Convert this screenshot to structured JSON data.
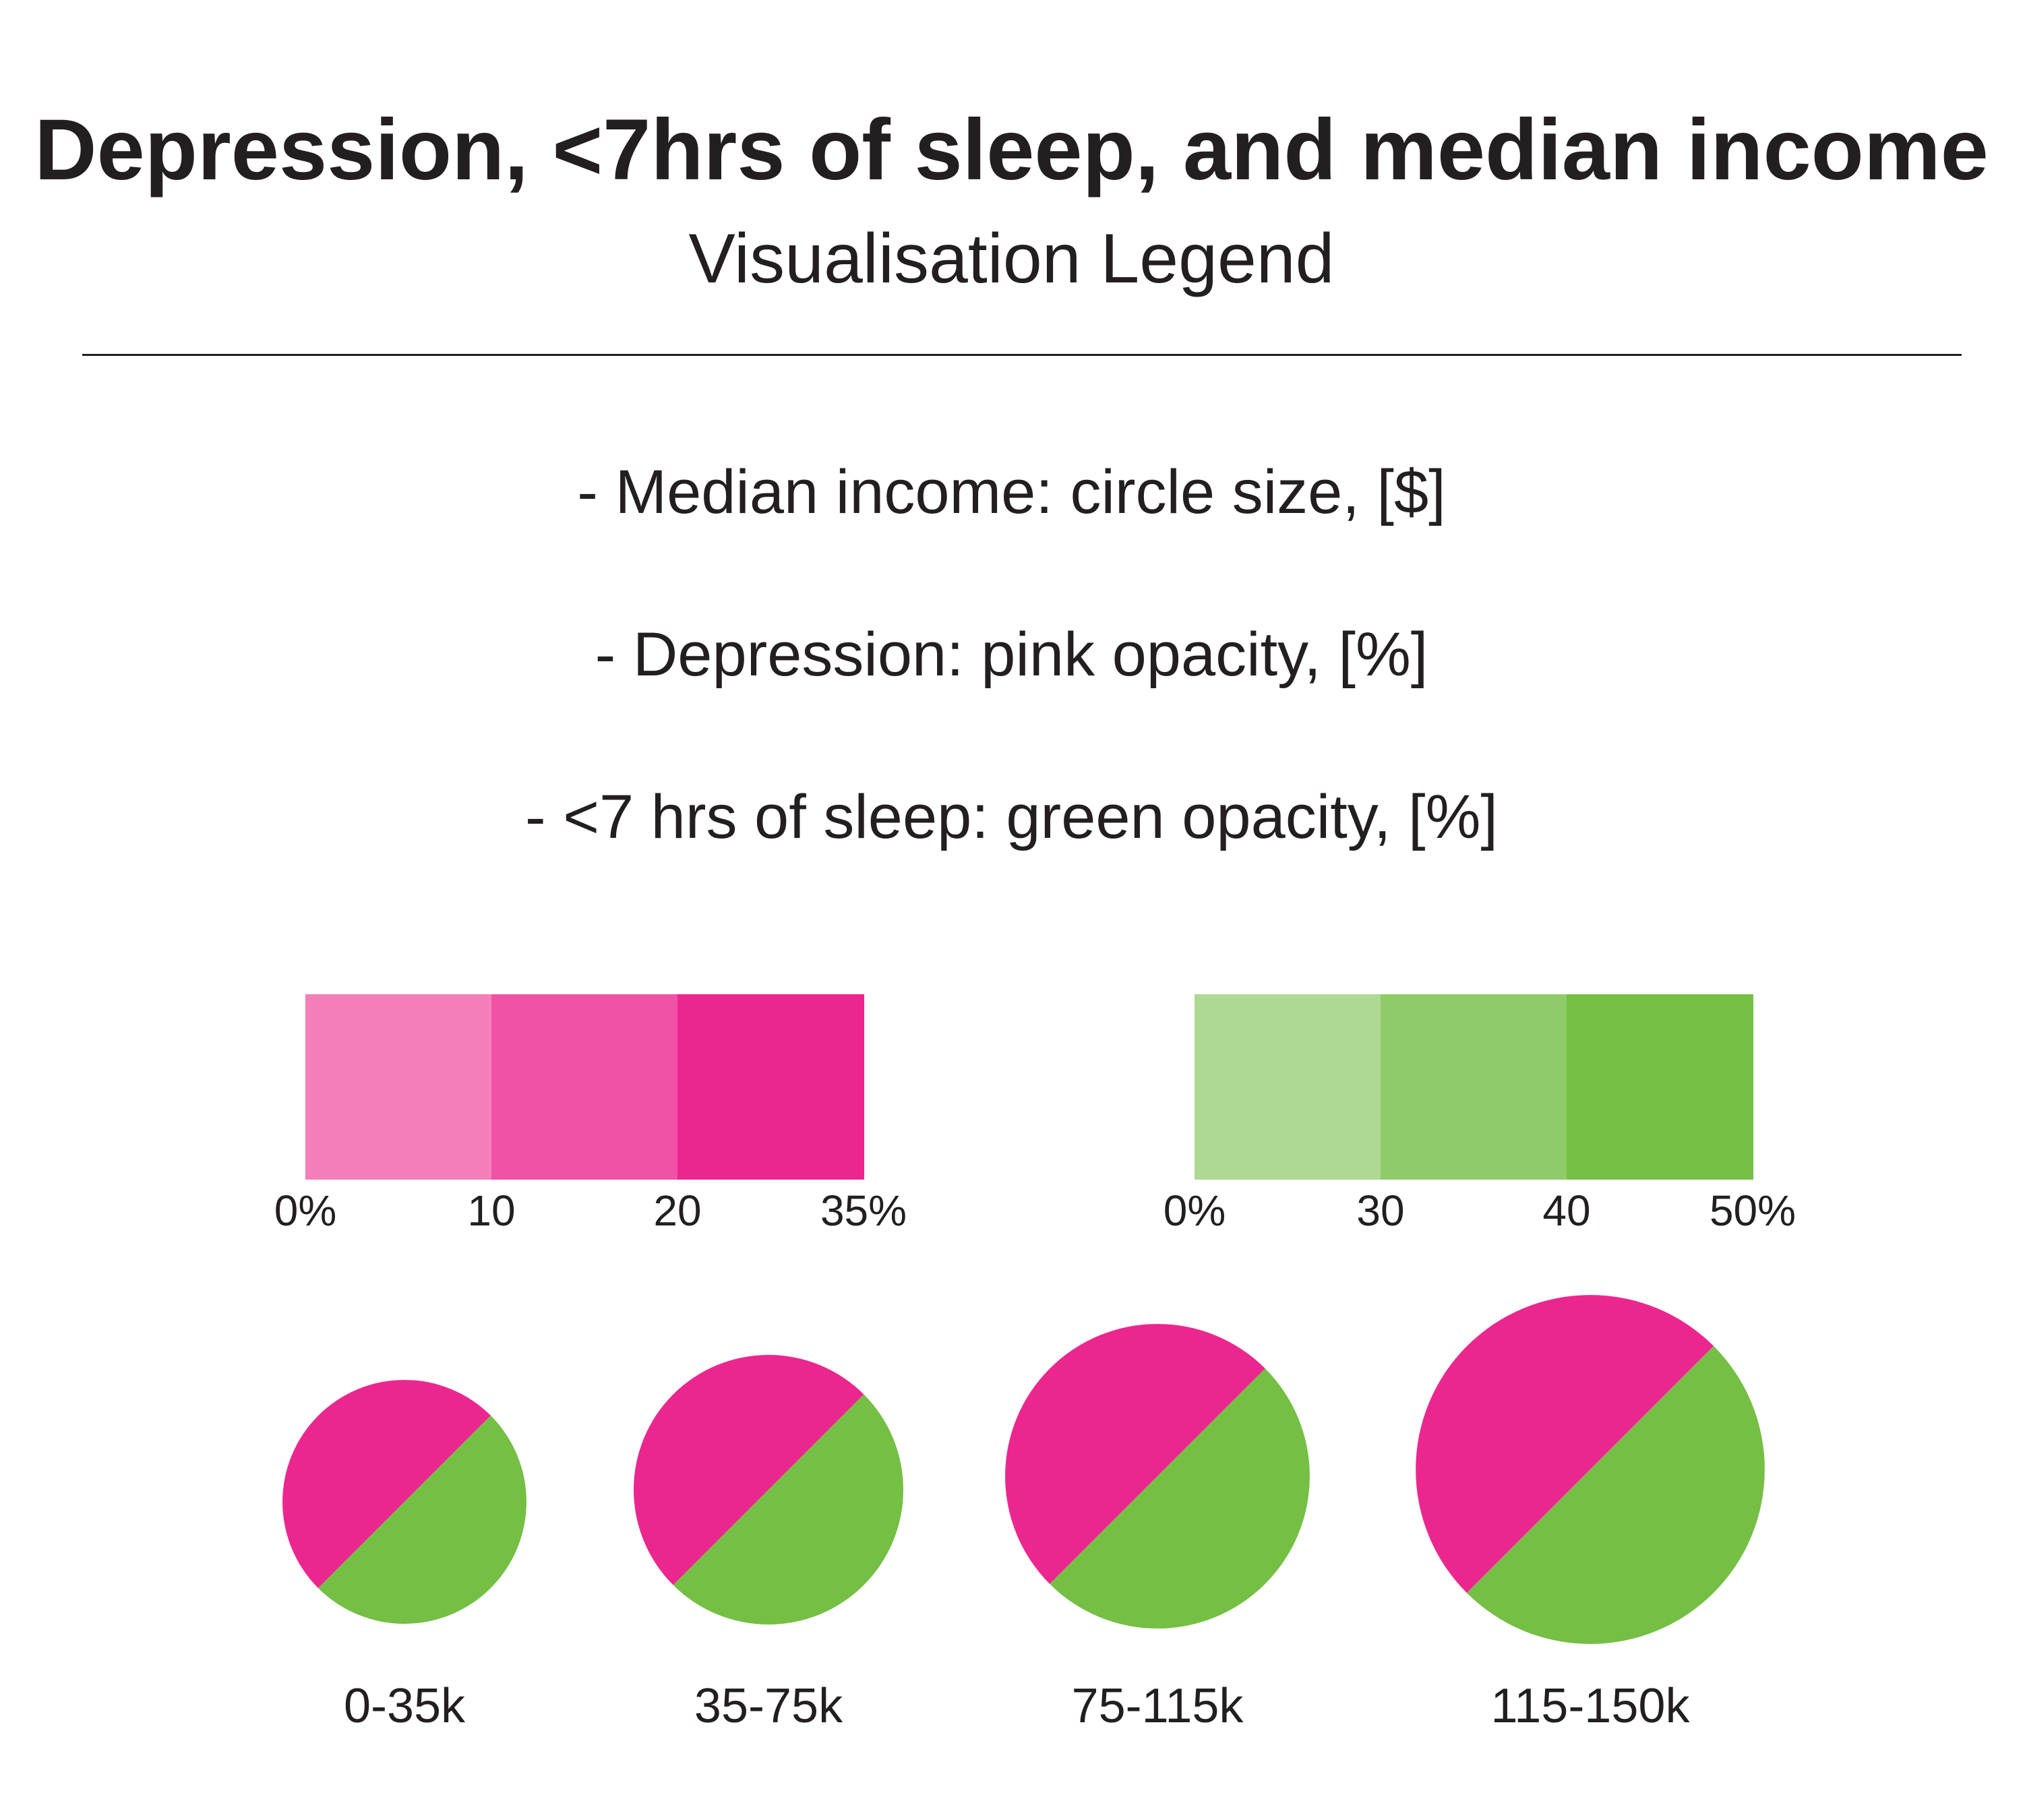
{
  "title": "Depression, <7hrs of sleep, and median income",
  "subtitle": "Visualisation Legend",
  "legend_lines": [
    "- Median income: circle size, [$]",
    "- Depression: pink opacity, [%]",
    "- <7 hrs of sleep: green opacity, [%]"
  ],
  "pink_scale": {
    "colors": [
      "#f47eb9",
      "#f052a5",
      "#ec268f"
    ],
    "ticks": [
      "0%",
      "10",
      "20",
      "35%"
    ]
  },
  "green_scale": {
    "colors": [
      "#aed993",
      "#8fcb68",
      "#74bf44"
    ],
    "ticks": [
      "0%",
      "30",
      "40",
      "50%"
    ]
  },
  "income_circles": {
    "pink": "#ec268f",
    "green": "#74bf44",
    "items": [
      {
        "label": "0-35k"
      },
      {
        "label": "35-75k"
      },
      {
        "label": "75-115k"
      },
      {
        "label": "115-150k"
      }
    ]
  }
}
